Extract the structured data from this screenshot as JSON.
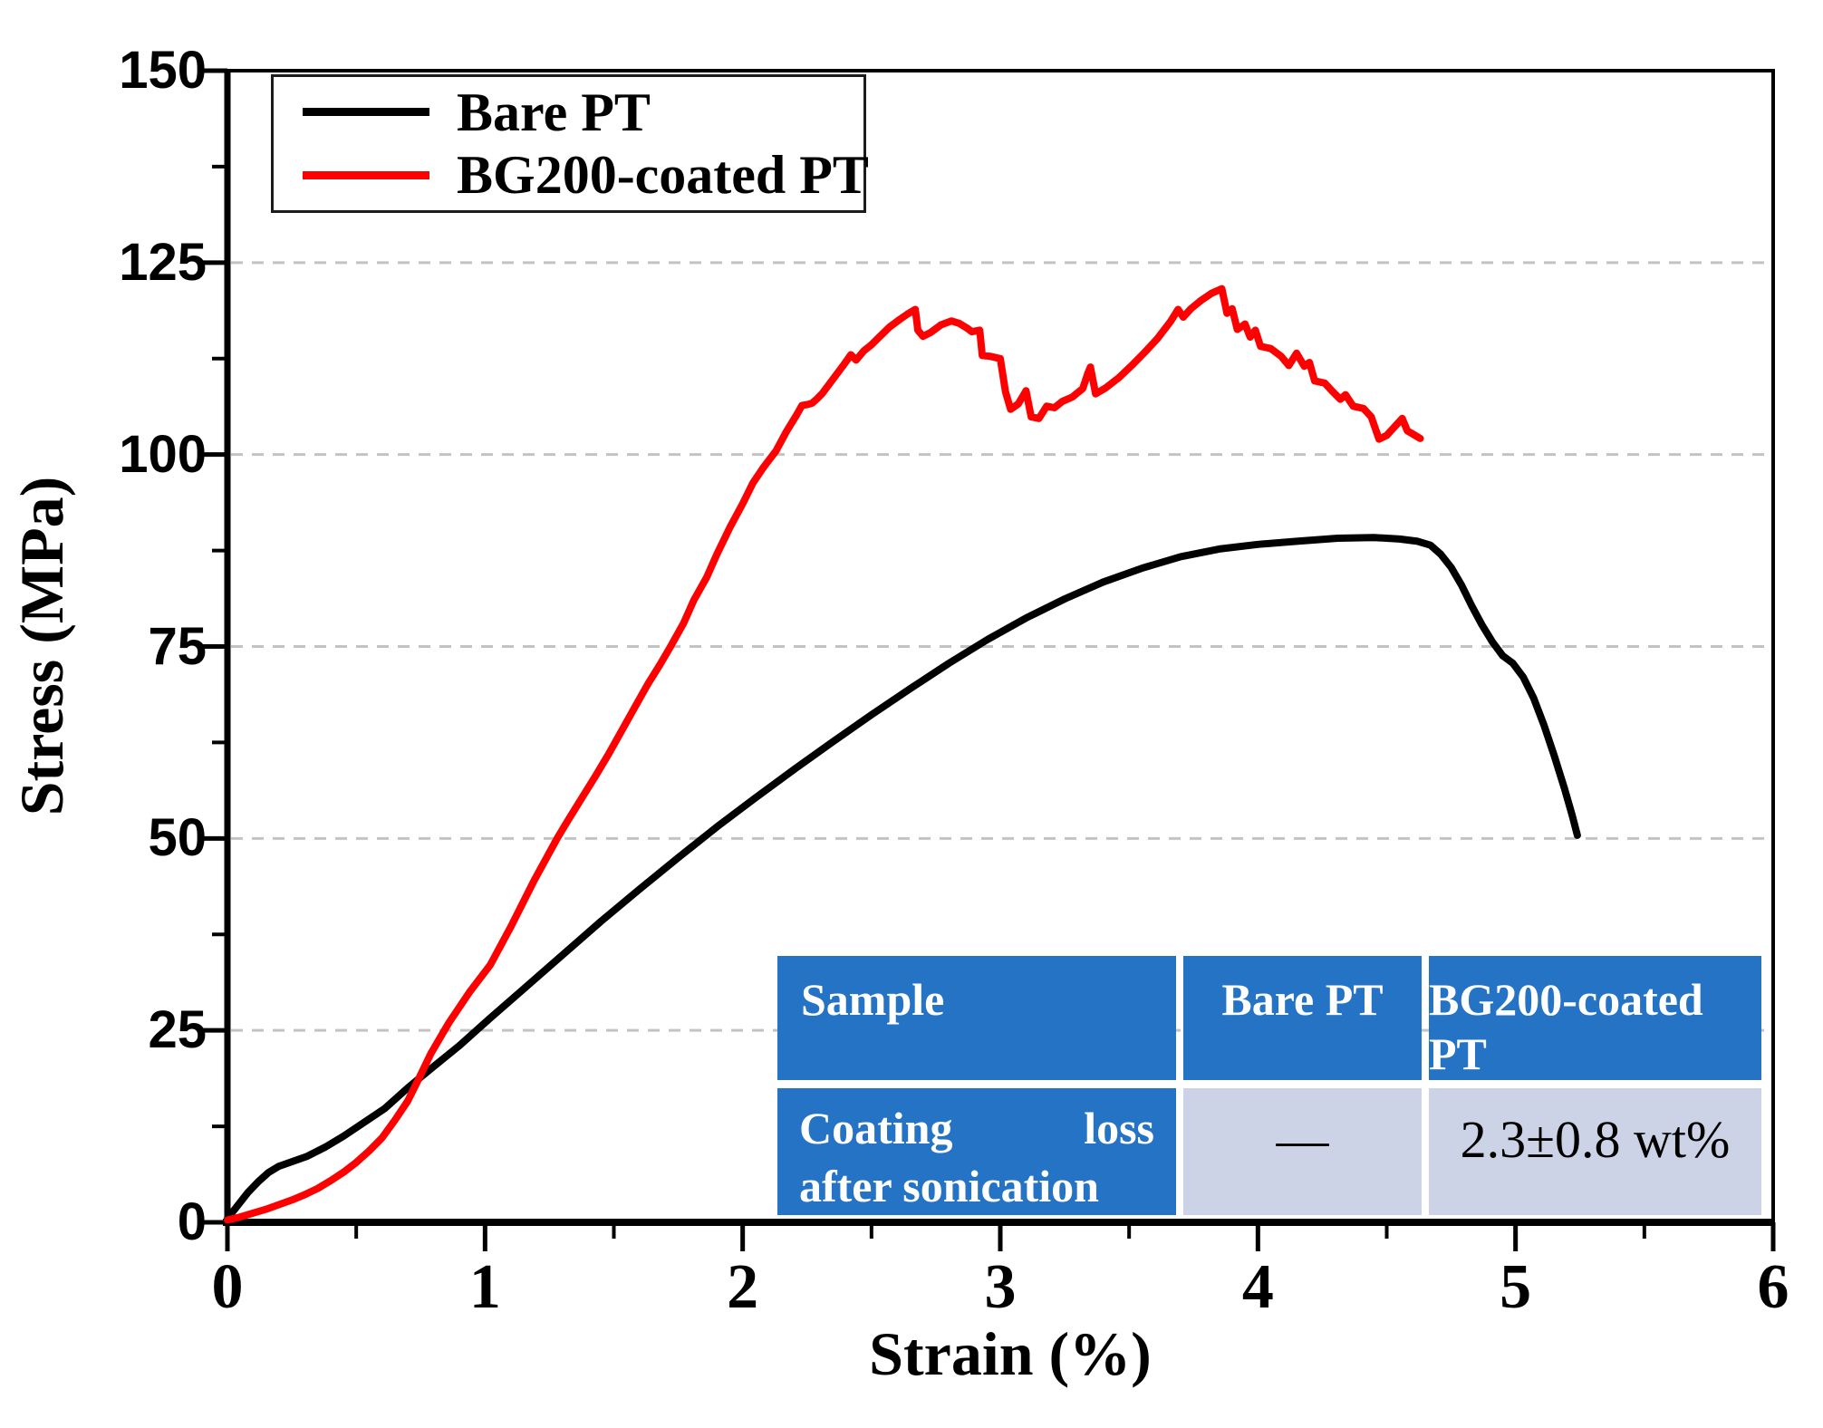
{
  "chart_data": {
    "type": "line",
    "title": "",
    "xlabel": "Strain (%)",
    "ylabel": "Stress (MPa)",
    "xlim": [
      0,
      6
    ],
    "ylim": [
      0,
      150
    ],
    "x_major_ticks": [
      0,
      1,
      2,
      3,
      4,
      5,
      6
    ],
    "y_major_ticks": [
      0,
      25,
      50,
      75,
      100,
      125,
      150
    ],
    "x_minor_ticks": [
      0.5,
      1.5,
      2.5,
      3.5,
      4.5,
      5.5
    ],
    "y_minor_ticks": [
      12.5,
      37.5,
      62.5,
      87.5,
      112.5,
      137.5
    ],
    "grid": "horizontal-dashed-at-y-majors",
    "grid_color": "#c3c3c3",
    "axis_color": "#000000",
    "legend_position": "top-left",
    "series": [
      {
        "name": "Bare PT",
        "color": "#000000",
        "points": [
          [
            0,
            0.5
          ],
          [
            0.04,
            2.2
          ],
          [
            0.08,
            3.9
          ],
          [
            0.12,
            5.3
          ],
          [
            0.16,
            6.5
          ],
          [
            0.2,
            7.3
          ],
          [
            0.25,
            7.9
          ],
          [
            0.31,
            8.6
          ],
          [
            0.38,
            9.8
          ],
          [
            0.45,
            11.2
          ],
          [
            0.53,
            13
          ],
          [
            0.61,
            14.8
          ],
          [
            0.7,
            17.5
          ],
          [
            0.79,
            20
          ],
          [
            0.9,
            23
          ],
          [
            1.02,
            26.6
          ],
          [
            1.15,
            30.4
          ],
          [
            1.3,
            34.8
          ],
          [
            1.45,
            39.2
          ],
          [
            1.6,
            43.4
          ],
          [
            1.75,
            47.5
          ],
          [
            1.9,
            51.5
          ],
          [
            2.05,
            55.3
          ],
          [
            2.2,
            59
          ],
          [
            2.35,
            62.6
          ],
          [
            2.5,
            66.1
          ],
          [
            2.65,
            69.5
          ],
          [
            2.8,
            72.8
          ],
          [
            2.95,
            75.9
          ],
          [
            3.1,
            78.7
          ],
          [
            3.25,
            81.2
          ],
          [
            3.4,
            83.4
          ],
          [
            3.55,
            85.2
          ],
          [
            3.7,
            86.7
          ],
          [
            3.85,
            87.7
          ],
          [
            4,
            88.3
          ],
          [
            4.15,
            88.7
          ],
          [
            4.31,
            89.1
          ],
          [
            4.45,
            89.2
          ],
          [
            4.55,
            89
          ],
          [
            4.62,
            88.7
          ],
          [
            4.67,
            88.2
          ],
          [
            4.71,
            87
          ],
          [
            4.75,
            85.3
          ],
          [
            4.79,
            83
          ],
          [
            4.83,
            80.3
          ],
          [
            4.87,
            77.8
          ],
          [
            4.91,
            75.6
          ],
          [
            4.95,
            73.8
          ],
          [
            4.99,
            72.8
          ],
          [
            5.03,
            71
          ],
          [
            5.07,
            68.3
          ],
          [
            5.11,
            64.8
          ],
          [
            5.15,
            60.8
          ],
          [
            5.19,
            56.5
          ],
          [
            5.22,
            53
          ],
          [
            5.24,
            50.4
          ]
        ]
      },
      {
        "name": "BG200-coated PT",
        "color": "#ff0000",
        "points": [
          [
            0,
            0.3
          ],
          [
            0.05,
            0.7
          ],
          [
            0.1,
            1.2
          ],
          [
            0.15,
            1.7
          ],
          [
            0.2,
            2.3
          ],
          [
            0.25,
            2.9
          ],
          [
            0.3,
            3.6
          ],
          [
            0.35,
            4.4
          ],
          [
            0.4,
            5.4
          ],
          [
            0.45,
            6.5
          ],
          [
            0.5,
            7.8
          ],
          [
            0.55,
            9.3
          ],
          [
            0.6,
            11
          ],
          [
            0.65,
            13.3
          ],
          [
            0.7,
            15.8
          ],
          [
            0.74,
            18.5
          ],
          [
            0.79,
            22
          ],
          [
            0.86,
            26
          ],
          [
            0.94,
            30
          ],
          [
            1.02,
            33.5
          ],
          [
            1.1,
            38.5
          ],
          [
            1.19,
            44.5
          ],
          [
            1.28,
            50
          ],
          [
            1.31,
            51.7
          ],
          [
            1.33,
            52.8
          ],
          [
            1.38,
            55.5
          ],
          [
            1.43,
            58.2
          ],
          [
            1.48,
            61
          ],
          [
            1.53,
            64
          ],
          [
            1.58,
            67
          ],
          [
            1.63,
            70
          ],
          [
            1.68,
            72.7
          ],
          [
            1.72,
            75
          ],
          [
            1.77,
            78
          ],
          [
            1.81,
            81
          ],
          [
            1.86,
            84
          ],
          [
            1.9,
            87
          ],
          [
            1.95,
            90.5
          ],
          [
            2,
            93.6
          ],
          [
            2.04,
            96.3
          ],
          [
            2.08,
            98.3
          ],
          [
            2.13,
            100.5
          ],
          [
            2.17,
            103
          ],
          [
            2.21,
            105.2
          ],
          [
            2.23,
            106.4
          ],
          [
            2.25,
            106.5
          ],
          [
            2.27,
            106.7
          ],
          [
            2.29,
            107.3
          ],
          [
            2.31,
            108
          ],
          [
            2.35,
            109.8
          ],
          [
            2.39,
            111.6
          ],
          [
            2.42,
            113
          ],
          [
            2.44,
            112.3
          ],
          [
            2.47,
            113.5
          ],
          [
            2.5,
            114.3
          ],
          [
            2.53,
            115.3
          ],
          [
            2.57,
            116.6
          ],
          [
            2.61,
            117.6
          ],
          [
            2.64,
            118.3
          ],
          [
            2.67,
            118.9
          ],
          [
            2.68,
            116.2
          ],
          [
            2.7,
            115.4
          ],
          [
            2.73,
            115.9
          ],
          [
            2.77,
            116.9
          ],
          [
            2.81,
            117.4
          ],
          [
            2.84,
            117.1
          ],
          [
            2.87,
            116.5
          ],
          [
            2.89,
            116
          ],
          [
            2.92,
            116.2
          ],
          [
            2.93,
            112.9
          ],
          [
            2.96,
            112.8
          ],
          [
            3,
            112.5
          ],
          [
            3.02,
            108.2
          ],
          [
            3.04,
            105.9
          ],
          [
            3.07,
            106.6
          ],
          [
            3.1,
            108.3
          ],
          [
            3.12,
            104.9
          ],
          [
            3.15,
            104.7
          ],
          [
            3.18,
            106.3
          ],
          [
            3.21,
            106.1
          ],
          [
            3.24,
            106.9
          ],
          [
            3.28,
            107.5
          ],
          [
            3.32,
            108.6
          ],
          [
            3.34,
            110.6
          ],
          [
            3.35,
            111.4
          ],
          [
            3.37,
            107.9
          ],
          [
            3.41,
            108.7
          ],
          [
            3.46,
            110
          ],
          [
            3.51,
            111.6
          ],
          [
            3.56,
            113.3
          ],
          [
            3.61,
            115.1
          ],
          [
            3.66,
            117.3
          ],
          [
            3.69,
            118.9
          ],
          [
            3.71,
            117.9
          ],
          [
            3.74,
            119
          ],
          [
            3.78,
            120.1
          ],
          [
            3.82,
            121
          ],
          [
            3.86,
            121.6
          ],
          [
            3.88,
            118.4
          ],
          [
            3.9,
            119
          ],
          [
            3.92,
            116.3
          ],
          [
            3.95,
            117
          ],
          [
            3.97,
            115.3
          ],
          [
            3.99,
            116.2
          ],
          [
            4.01,
            114.1
          ],
          [
            4.05,
            113.8
          ],
          [
            4.09,
            112.8
          ],
          [
            4.12,
            111.6
          ],
          [
            4.15,
            113.2
          ],
          [
            4.18,
            111.5
          ],
          [
            4.2,
            112
          ],
          [
            4.22,
            109.6
          ],
          [
            4.26,
            109.3
          ],
          [
            4.29,
            108.2
          ],
          [
            4.32,
            107.2
          ],
          [
            4.34,
            107.8
          ],
          [
            4.37,
            106.3
          ],
          [
            4.41,
            106
          ],
          [
            4.44,
            104.9
          ],
          [
            4.47,
            102
          ],
          [
            4.5,
            102.5
          ],
          [
            4.53,
            103.6
          ],
          [
            4.56,
            104.7
          ],
          [
            4.58,
            103.1
          ],
          [
            4.61,
            102.5
          ],
          [
            4.63,
            102.1
          ]
        ]
      }
    ]
  },
  "legend": {
    "entries": [
      {
        "label": "Bare PT",
        "color": "#000000"
      },
      {
        "label": "BG200-coated PT",
        "color": "#ff0000"
      }
    ]
  },
  "inset_table": {
    "header": [
      "Sample",
      "Bare PT",
      "BG200-coated",
      "PT"
    ],
    "row": {
      "label_line1_left": "Coating",
      "label_line1_right": "loss",
      "label_line2": "after sonication",
      "bare_value": "—",
      "coated_value": "2.3±0.8 wt%"
    },
    "header_bg": "#2573c4",
    "value_bg": "#ccd3e6",
    "header_text_color": "#ffffff"
  }
}
